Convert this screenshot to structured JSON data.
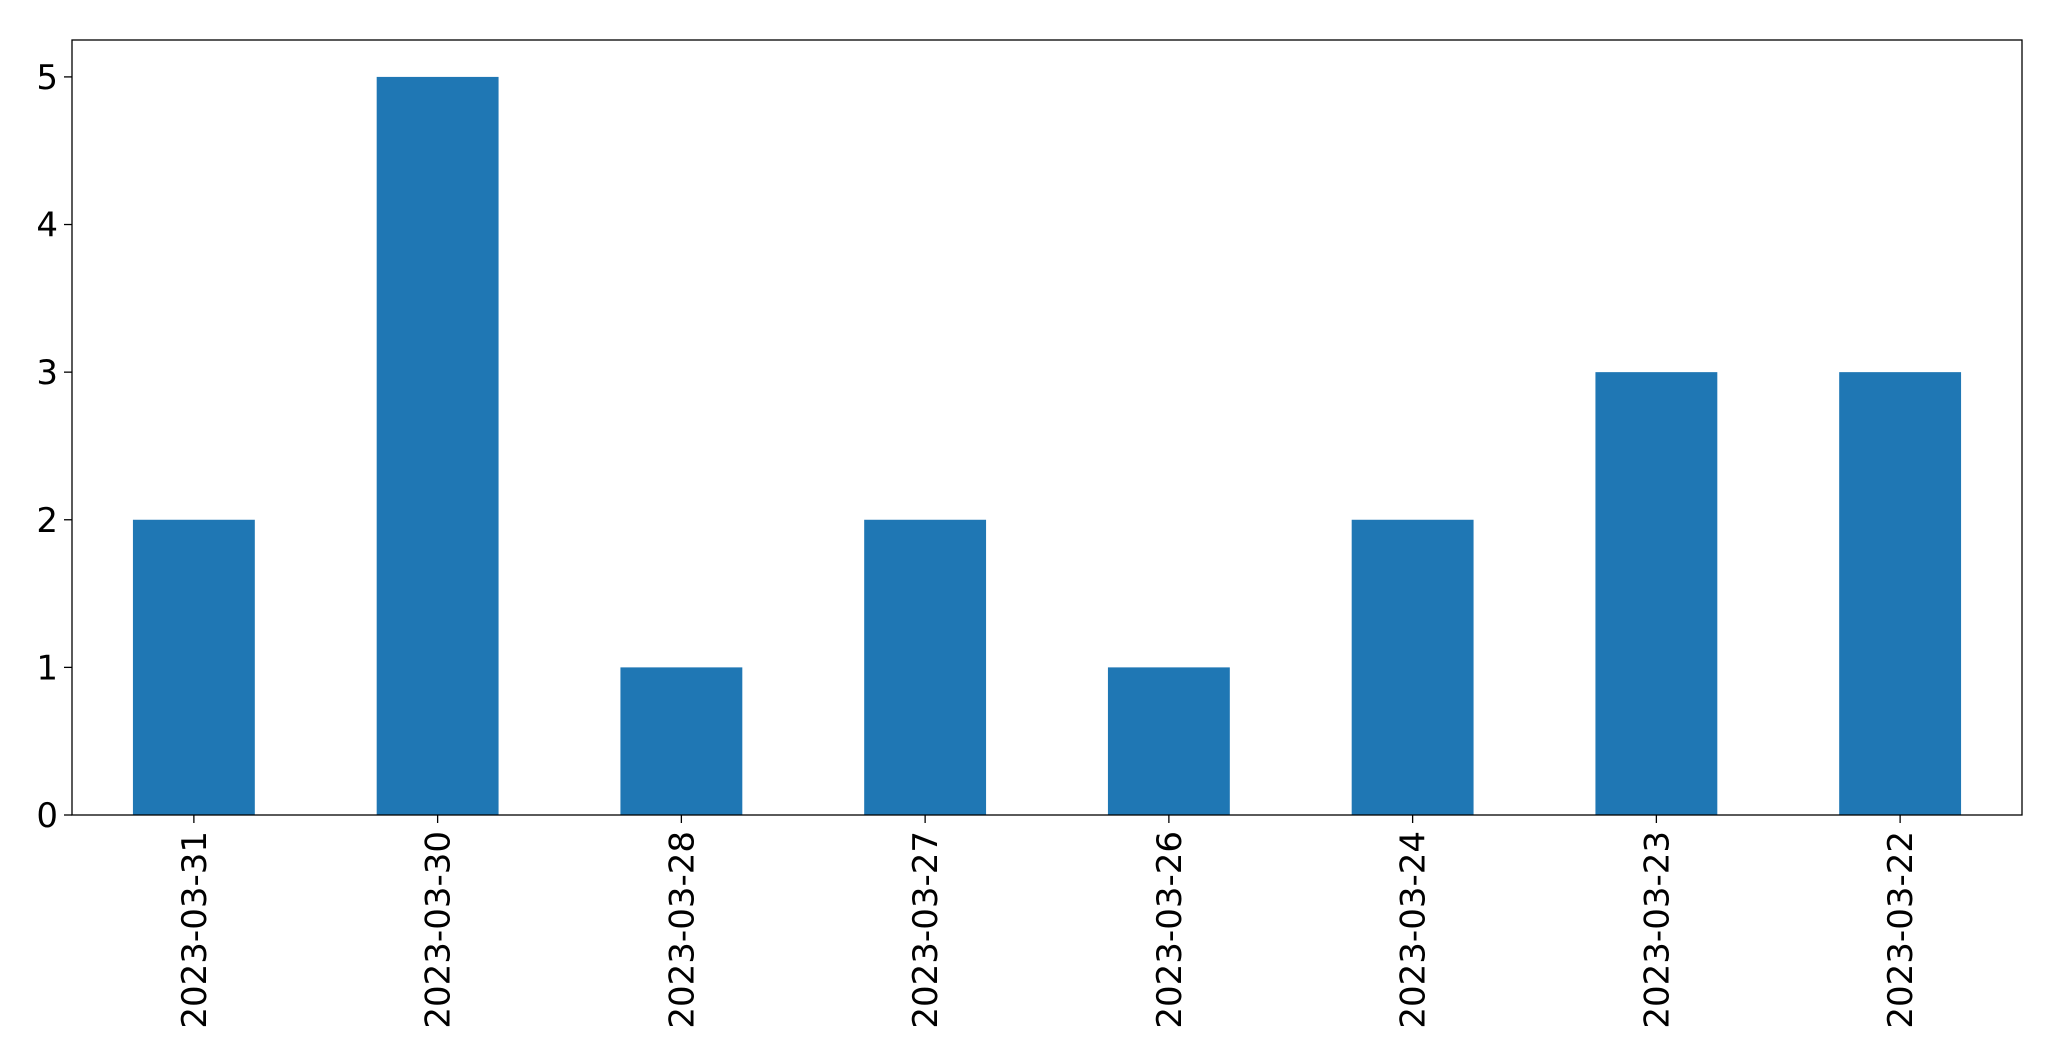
{
  "chart_data": {
    "type": "bar",
    "title": "",
    "xlabel": "",
    "ylabel": "",
    "categories": [
      "2023-03-31",
      "2023-03-30",
      "2023-03-28",
      "2023-03-27",
      "2023-03-26",
      "2023-03-24",
      "2023-03-23",
      "2023-03-22"
    ],
    "values": [
      2,
      5,
      1,
      2,
      1,
      2,
      3,
      3
    ],
    "yticks": [
      0,
      1,
      2,
      3,
      4,
      5
    ],
    "ylim": [
      0,
      5.25
    ],
    "grid": false,
    "legend": "none",
    "bar_color": "#1f77b4"
  }
}
